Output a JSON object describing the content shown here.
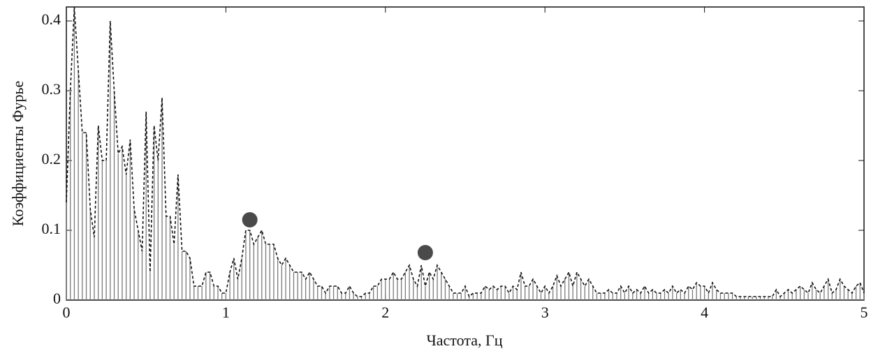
{
  "chart_data": {
    "type": "stem",
    "xlabel": "Частота, Гц",
    "ylabel": "Коэффициенты Фурье",
    "xlim": [
      0,
      5
    ],
    "ylim": [
      0,
      0.42
    ],
    "xticks": [
      0,
      1,
      2,
      3,
      4,
      5
    ],
    "yticks": [
      0,
      0.1,
      0.2,
      0.3,
      0.4
    ],
    "stem_color": "#7a7a7a",
    "line_color": "#111111",
    "x": [
      0,
      0.025,
      0.05,
      0.075,
      0.1,
      0.125,
      0.15,
      0.175,
      0.2,
      0.225,
      0.25,
      0.275,
      0.3,
      0.325,
      0.35,
      0.375,
      0.4,
      0.425,
      0.45,
      0.475,
      0.5,
      0.525,
      0.55,
      0.575,
      0.6,
      0.625,
      0.65,
      0.675,
      0.7,
      0.725,
      0.75,
      0.775,
      0.8,
      0.825,
      0.85,
      0.875,
      0.9,
      0.925,
      0.95,
      0.975,
      1,
      1.025,
      1.05,
      1.075,
      1.1,
      1.125,
      1.15,
      1.175,
      1.2,
      1.225,
      1.25,
      1.275,
      1.3,
      1.325,
      1.35,
      1.375,
      1.4,
      1.425,
      1.45,
      1.475,
      1.5,
      1.525,
      1.55,
      1.575,
      1.6,
      1.625,
      1.65,
      1.675,
      1.7,
      1.725,
      1.75,
      1.775,
      1.8,
      1.825,
      1.85,
      1.875,
      1.9,
      1.925,
      1.95,
      1.975,
      2,
      2.025,
      2.05,
      2.075,
      2.1,
      2.125,
      2.15,
      2.175,
      2.2,
      2.225,
      2.25,
      2.275,
      2.3,
      2.325,
      2.35,
      2.375,
      2.4,
      2.425,
      2.45,
      2.475,
      2.5,
      2.525,
      2.55,
      2.575,
      2.6,
      2.625,
      2.65,
      2.675,
      2.7,
      2.725,
      2.75,
      2.775,
      2.8,
      2.825,
      2.85,
      2.875,
      2.9,
      2.925,
      2.95,
      2.975,
      3,
      3.025,
      3.05,
      3.075,
      3.1,
      3.125,
      3.15,
      3.175,
      3.2,
      3.225,
      3.25,
      3.275,
      3.3,
      3.325,
      3.35,
      3.375,
      3.4,
      3.425,
      3.45,
      3.475,
      3.5,
      3.525,
      3.55,
      3.575,
      3.6,
      3.625,
      3.65,
      3.675,
      3.7,
      3.725,
      3.75,
      3.775,
      3.8,
      3.825,
      3.85,
      3.875,
      3.9,
      3.925,
      3.95,
      3.975,
      4,
      4.025,
      4.05,
      4.075,
      4.1,
      4.125,
      4.15,
      4.175,
      4.2,
      4.225,
      4.25,
      4.275,
      4.3,
      4.325,
      4.35,
      4.375,
      4.4,
      4.425,
      4.45,
      4.475,
      4.5,
      4.525,
      4.55,
      4.575,
      4.6,
      4.625,
      4.65,
      4.675,
      4.7,
      4.725,
      4.75,
      4.775,
      4.8,
      4.825,
      4.85,
      4.875,
      4.9,
      4.925,
      4.95,
      4.975,
      5
    ],
    "values": [
      0.14,
      0.3,
      0.42,
      0.33,
      0.24,
      0.24,
      0.13,
      0.09,
      0.25,
      0.2,
      0.2,
      0.4,
      0.3,
      0.21,
      0.22,
      0.18,
      0.23,
      0.13,
      0.1,
      0.07,
      0.27,
      0.04,
      0.25,
      0.2,
      0.29,
      0.12,
      0.12,
      0.08,
      0.18,
      0.07,
      0.07,
      0.06,
      0.02,
      0.02,
      0.02,
      0.04,
      0.04,
      0.02,
      0.02,
      0.01,
      0.01,
      0.04,
      0.06,
      0.03,
      0.06,
      0.1,
      0.1,
      0.08,
      0.09,
      0.1,
      0.08,
      0.08,
      0.08,
      0.06,
      0.05,
      0.06,
      0.05,
      0.04,
      0.04,
      0.04,
      0.03,
      0.04,
      0.03,
      0.02,
      0.02,
      0.01,
      0.02,
      0.02,
      0.02,
      0.01,
      0.01,
      0.02,
      0.01,
      0.005,
      0.005,
      0.01,
      0.01,
      0.02,
      0.02,
      0.03,
      0.03,
      0.03,
      0.04,
      0.03,
      0.03,
      0.04,
      0.05,
      0.03,
      0.02,
      0.05,
      0.02,
      0.04,
      0.03,
      0.05,
      0.04,
      0.03,
      0.02,
      0.01,
      0.01,
      0.01,
      0.02,
      0.005,
      0.01,
      0.01,
      0.01,
      0.02,
      0.015,
      0.02,
      0.015,
      0.02,
      0.02,
      0.01,
      0.02,
      0.015,
      0.04,
      0.02,
      0.02,
      0.03,
      0.02,
      0.01,
      0.02,
      0.01,
      0.02,
      0.035,
      0.02,
      0.03,
      0.04,
      0.02,
      0.04,
      0.03,
      0.02,
      0.03,
      0.02,
      0.01,
      0.01,
      0.01,
      0.015,
      0.01,
      0.01,
      0.02,
      0.01,
      0.02,
      0.01,
      0.015,
      0.01,
      0.02,
      0.01,
      0.015,
      0.01,
      0.01,
      0.015,
      0.01,
      0.02,
      0.01,
      0.015,
      0.01,
      0.02,
      0.015,
      0.025,
      0.02,
      0.02,
      0.01,
      0.025,
      0.015,
      0.01,
      0.01,
      0.01,
      0.01,
      0.005,
      0.005,
      0.005,
      0.005,
      0.005,
      0.005,
      0.005,
      0.005,
      0.005,
      0.005,
      0.015,
      0.005,
      0.01,
      0.015,
      0.01,
      0.015,
      0.02,
      0.015,
      0.01,
      0.025,
      0.015,
      0.01,
      0.02,
      0.03,
      0.01,
      0.015,
      0.03,
      0.02,
      0.015,
      0.01,
      0.02,
      0.025,
      0.01
    ],
    "markers": {
      "color": "#4a4a4a",
      "x": [
        1.15,
        2.25
      ],
      "values": [
        0.115,
        0.068
      ]
    }
  }
}
